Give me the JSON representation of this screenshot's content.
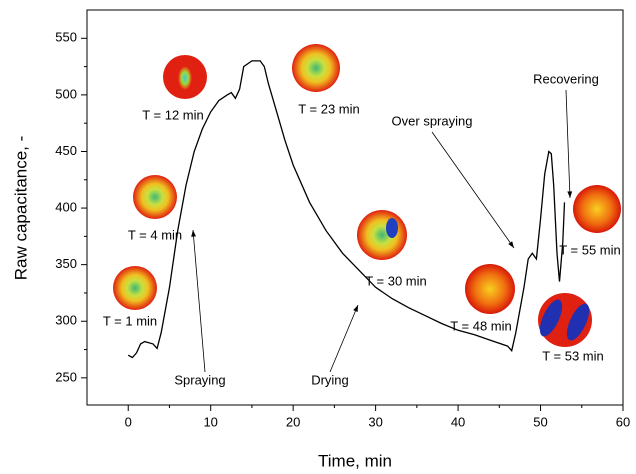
{
  "chart_data": {
    "type": "line",
    "xlabel": "Time, min",
    "ylabel": "Raw capacitance, -",
    "xlim": [
      -5,
      60
    ],
    "ylim": [
      226,
      575
    ],
    "xticks": [
      0,
      10,
      20,
      30,
      40,
      50,
      60
    ],
    "yticks": [
      250,
      300,
      350,
      400,
      450,
      500,
      550
    ],
    "x": [
      0,
      0.5,
      1,
      1.5,
      2,
      3,
      3.5,
      4,
      5,
      6,
      7,
      8,
      9,
      10,
      11,
      12,
      12.5,
      13,
      13.5,
      14,
      15,
      16,
      16.5,
      17,
      18,
      19,
      20,
      22,
      24,
      26,
      28,
      30,
      32,
      34,
      36,
      38,
      40,
      42,
      44,
      46,
      46.5,
      47,
      48,
      48.5,
      49,
      49.5,
      50,
      50.5,
      51,
      51.3,
      51.6,
      52,
      52.3,
      52.7,
      52.9
    ],
    "series": [
      {
        "color": "#000000",
        "values": [
          270,
          268,
          272,
          280,
          282,
          280,
          276,
          290,
          330,
          380,
          420,
          450,
          470,
          485,
          495,
          500,
          502,
          497,
          505,
          525,
          530,
          530,
          525,
          510,
          485,
          460,
          438,
          405,
          380,
          360,
          345,
          330,
          320,
          312,
          305,
          298,
          292,
          288,
          283,
          278,
          274,
          290,
          330,
          355,
          360,
          355,
          390,
          430,
          450,
          448,
          420,
          360,
          335,
          370,
          405
        ]
      }
    ],
    "annotations": [
      {
        "text": "Spraying"
      },
      {
        "text": "Drying"
      },
      {
        "text": "Over spraying"
      },
      {
        "text": "Recovering"
      }
    ],
    "snapshots": [
      "T = 1 min",
      "T = 4 min",
      "T = 12 min",
      "T = 23 min",
      "T = 30 min",
      "T = 48 min",
      "T = 53 min",
      "T = 55 min"
    ]
  }
}
